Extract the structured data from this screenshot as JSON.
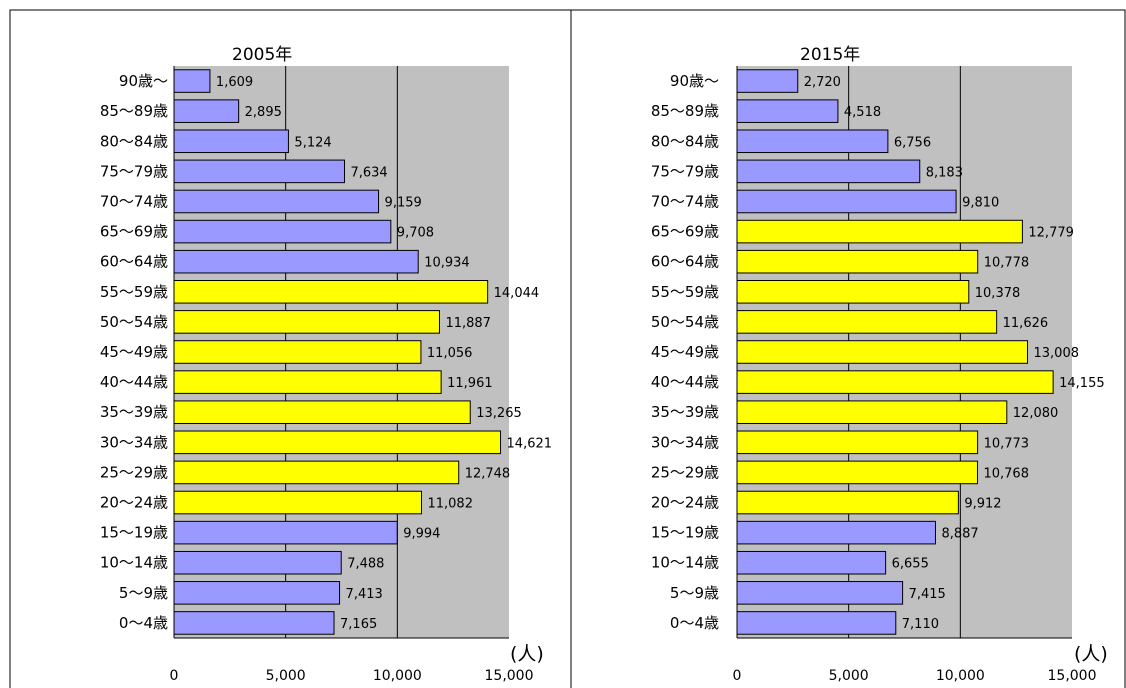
{
  "colors": {
    "plot_bg": "#c0c0c0",
    "bar_elderly_child": "#9999ff",
    "bar_working": "#ffff00",
    "bar_border": "#000000",
    "frame_border": "#000000"
  },
  "chart_data": [
    {
      "type": "bar",
      "orientation": "horizontal",
      "title": "2005年",
      "unit_label": "(人)",
      "xlim": [
        0,
        15000
      ],
      "ticks": [
        0,
        5000,
        10000,
        15000
      ],
      "tick_labels": [
        "0",
        "5,000",
        "10,000",
        "15,000"
      ],
      "grid": true,
      "categories": [
        "90歳～",
        "85～89歳",
        "80～84歳",
        "75～79歳",
        "70～74歳",
        "65～69歳",
        "60～64歳",
        "55～59歳",
        "50～54歳",
        "45～49歳",
        "40～44歳",
        "35～39歳",
        "30～34歳",
        "25～29歳",
        "20～24歳",
        "15～19歳",
        "10～14歳",
        "5～9歳",
        "0～4歳"
      ],
      "values": [
        1609,
        2895,
        5124,
        7634,
        9159,
        9708,
        10934,
        14044,
        11887,
        11056,
        11961,
        13265,
        14621,
        12748,
        11082,
        9994,
        7488,
        7413,
        7165
      ],
      "value_labels": [
        "1,609",
        "2,895",
        "5,124",
        "7,634",
        "9,159",
        "9,708",
        "10,934",
        "14,044",
        "11,887",
        "11,056",
        "11,961",
        "13,265",
        "14,621",
        "12,748",
        "11,082",
        "9,994",
        "7,488",
        "7,413",
        "7,165"
      ],
      "working_age": [
        false,
        false,
        false,
        false,
        false,
        false,
        false,
        true,
        true,
        true,
        true,
        true,
        true,
        true,
        true,
        false,
        false,
        false,
        false
      ]
    },
    {
      "type": "bar",
      "orientation": "horizontal",
      "title": "2015年",
      "unit_label": "(人)",
      "xlim": [
        0,
        15000
      ],
      "ticks": [
        0,
        5000,
        10000,
        15000
      ],
      "tick_labels": [
        "0",
        "5,000",
        "10,000",
        "15,000"
      ],
      "grid": true,
      "categories": [
        "90歳～",
        "85～89歳",
        "80～84歳",
        "75～79歳",
        "70～74歳",
        "65～69歳",
        "60～64歳",
        "55～59歳",
        "50～54歳",
        "45～49歳",
        "40～44歳",
        "35～39歳",
        "30～34歳",
        "25～29歳",
        "20～24歳",
        "15～19歳",
        "10～14歳",
        "5～9歳",
        "0～4歳"
      ],
      "values": [
        2720,
        4518,
        6756,
        8183,
        9810,
        12779,
        10778,
        10378,
        11626,
        13008,
        14155,
        12080,
        10773,
        10768,
        9912,
        8887,
        6655,
        7415,
        7110
      ],
      "value_labels": [
        "2,720",
        "4,518",
        "6,756",
        "8,183",
        "9,810",
        "12,779",
        "10,778",
        "10,378",
        "11,626",
        "13,008",
        "14,155",
        "12,080",
        "10,773",
        "10,768",
        "9,912",
        "8,887",
        "6,655",
        "7,415",
        "7,110"
      ],
      "working_age": [
        false,
        false,
        false,
        false,
        false,
        true,
        true,
        true,
        true,
        true,
        true,
        true,
        true,
        true,
        true,
        false,
        false,
        false,
        false
      ]
    }
  ]
}
